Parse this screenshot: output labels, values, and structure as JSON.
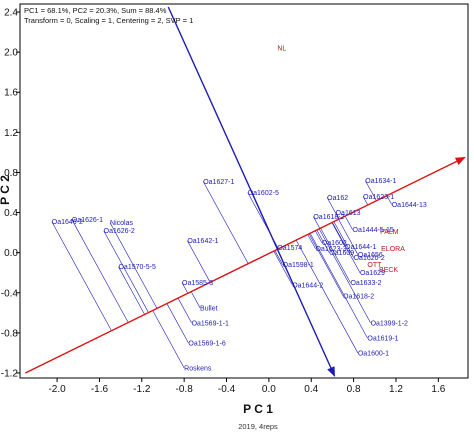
{
  "chart_data": {
    "type": "scatter",
    "title": "",
    "subtitle_lines": [
      "PC1 = 68.1%, PC2 = 20.3%, Sum = 88.4%",
      "Transform = 0, Scaling = 1, Centering = 2, SVP = 1"
    ],
    "xlabel": "P C 1",
    "ylabel": "P C 2",
    "footer": "2019, 4reps",
    "xlim": [
      -2.35,
      1.88
    ],
    "ylim": [
      -1.25,
      2.48
    ],
    "xticks": [
      -2.0,
      -1.6,
      -1.2,
      -0.8,
      -0.4,
      0.0,
      0.4,
      0.8,
      1.2,
      1.6
    ],
    "xtick_labels": [
      "-2.0",
      "-1.6",
      "-1.2",
      "-0.8",
      "-0.4",
      "0.0",
      "0.4",
      "0.8",
      "1.2",
      "1.6"
    ],
    "yticks": [
      2.4,
      2.0,
      1.6,
      1.2,
      0.8,
      0.4,
      0.0,
      -0.4,
      -0.8,
      -1.2
    ],
    "ytick_labels": [
      "2.4",
      "2.0",
      "1.6",
      "1.2",
      "0.8",
      "0.4",
      "0.0",
      "-0.4",
      "-0.8",
      "-1.2"
    ],
    "grid": false,
    "colors": {
      "genotype": "#1c1cb4",
      "environment": "#b01c1c",
      "axis_arrow": "#dd1111",
      "perpendicular_arrow": "#1c1cb4",
      "projection_line": "#1c1cb4"
    },
    "average_environment_axis": {
      "x1": -2.3,
      "y1": -1.2,
      "x2": 1.85,
      "y2": 0.95
    },
    "perpendicular_axis": {
      "x1": -0.95,
      "y1": 2.45,
      "x2": 0.62,
      "y2": -1.23
    },
    "genotypes": [
      {
        "label": "Oa1634-1",
        "x": 0.91,
        "y": 0.72
      },
      {
        "label": "Oa1623-1",
        "x": 0.89,
        "y": 0.56
      },
      {
        "label": "Oa1644-13",
        "x": 1.16,
        "y": 0.48
      },
      {
        "label": "Oa1627-1",
        "x": -0.62,
        "y": 0.71
      },
      {
        "label": "Oa1602-5",
        "x": -0.2,
        "y": 0.6
      },
      {
        "label": "Oa162",
        "x": 0.55,
        "y": 0.55
      },
      {
        "label": "Oa1618-2",
        "x": 0.42,
        "y": 0.36
      },
      {
        "label": "Oa1613",
        "x": 0.63,
        "y": 0.4
      },
      {
        "label": "Oa1444-5-15",
        "x": 0.79,
        "y": 0.23
      },
      {
        "label": "Oa1626-1",
        "x": -1.86,
        "y": 0.33
      },
      {
        "label": "Oa1646-2",
        "x": -2.05,
        "y": 0.31
      },
      {
        "label": "Nicolas",
        "x": -1.5,
        "y": 0.3
      },
      {
        "label": "Oa1626-2",
        "x": -1.56,
        "y": 0.22
      },
      {
        "label": "Oa1642-1",
        "x": -0.77,
        "y": 0.12
      },
      {
        "label": "Oa1570-5-5",
        "x": -1.42,
        "y": -0.14
      },
      {
        "label": "Oa1598-1",
        "x": 0.13,
        "y": -0.12
      },
      {
        "label": "Oa1644-2",
        "x": 0.22,
        "y": -0.32
      },
      {
        "label": "Oa1623-3",
        "x": 0.44,
        "y": 0.04
      },
      {
        "label": "Oa1644-1",
        "x": 0.72,
        "y": 0.06
      },
      {
        "label": "Oa1656",
        "x": 0.84,
        "y": -0.02
      },
      {
        "label": "Oa1620-2",
        "x": 0.8,
        "y": -0.05
      },
      {
        "label": "Oa1602",
        "x": 0.5,
        "y": 0.1
      },
      {
        "label": "Oa1609",
        "x": 0.57,
        "y": 0.0
      },
      {
        "label": "Oa1574",
        "x": 0.08,
        "y": 0.05
      },
      {
        "label": "Oa1629",
        "x": 0.86,
        "y": -0.2
      },
      {
        "label": "Oa1633-2",
        "x": 0.77,
        "y": -0.3
      },
      {
        "label": "Oa1618-2",
        "x": 0.7,
        "y": -0.43
      },
      {
        "label": "Oa1399-1-2",
        "x": 0.96,
        "y": -0.7
      },
      {
        "label": "Oa1619-1",
        "x": 0.93,
        "y": -0.85
      },
      {
        "label": "Oa1600-1",
        "x": 0.84,
        "y": -1.0
      },
      {
        "label": "Oa1585-3",
        "x": -0.82,
        "y": -0.3
      },
      {
        "label": "Bullet",
        "x": -0.65,
        "y": -0.55
      },
      {
        "label": "Oa1569-1-1",
        "x": -0.73,
        "y": -0.7
      },
      {
        "label": "Oa1569-1-6",
        "x": -0.76,
        "y": -0.9
      },
      {
        "label": "Roskens",
        "x": -0.8,
        "y": -1.15
      }
    ],
    "environments": [
      {
        "label": "NL",
        "x": 0.08,
        "y": 2.04
      },
      {
        "label": "PALM",
        "x": 1.05,
        "y": 0.21
      },
      {
        "label": "ELORA",
        "x": 1.06,
        "y": 0.04
      },
      {
        "label": "OTT",
        "x": 0.93,
        "y": -0.12
      },
      {
        "label": "BECK",
        "x": 1.04,
        "y": -0.17
      }
    ]
  }
}
